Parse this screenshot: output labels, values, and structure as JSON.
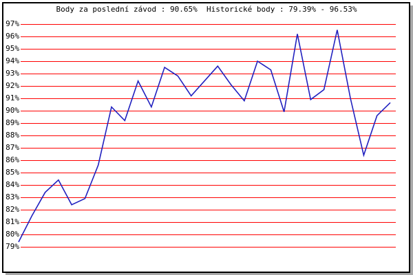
{
  "window": {
    "background": "#ffffff",
    "border_color": "#000000",
    "shadow_color": "#a8a8a8"
  },
  "header": {
    "title": "Body za poslední závod : 90.65%  Historické body : 79.39% - 96.53%"
  },
  "stats": {
    "last_race_points": "90.65%",
    "historical_min": "79.39%",
    "historical_max": "96.53%"
  },
  "chart_data": {
    "type": "line",
    "title": "Body za poslední závod : 90.65%  Historické body : 79.39% - 96.53%",
    "xlabel": "",
    "ylabel": "",
    "y_tick_labels": [
      "97%",
      "96%",
      "95%",
      "94%",
      "93%",
      "92%",
      "91%",
      "90%",
      "89%",
      "88%",
      "87%",
      "86%",
      "85%",
      "84%",
      "83%",
      "82%",
      "81%",
      "80%",
      "79%"
    ],
    "ylim": [
      79,
      97
    ],
    "grid": "horizontal-only",
    "gridline_color": "#ff0000",
    "legend": "none",
    "series": [
      {
        "name": "body-history",
        "color": "#2020bf",
        "values": [
          79.39,
          81.5,
          83.4,
          84.4,
          82.4,
          82.9,
          85.6,
          90.3,
          89.2,
          92.4,
          90.3,
          93.5,
          92.8,
          91.2,
          92.4,
          93.6,
          92.1,
          90.8,
          94.0,
          93.3,
          89.9,
          96.2,
          90.9,
          91.7,
          96.53,
          91.0,
          86.4,
          89.6,
          90.65
        ]
      }
    ]
  }
}
